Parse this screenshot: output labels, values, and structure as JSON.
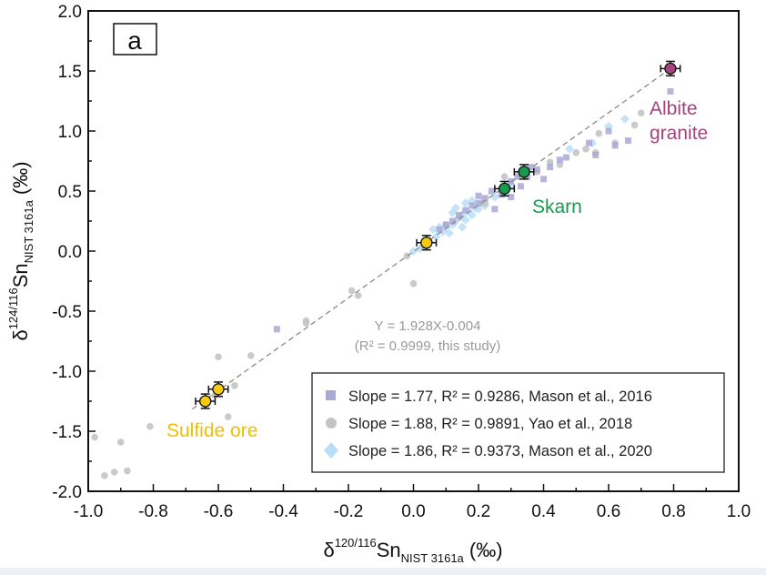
{
  "chart_data": {
    "type": "scatter",
    "panel_label": "a",
    "xlabel": {
      "base": "δ",
      "sup": "120/116",
      "main": "Sn",
      "sub": "NIST 3161a",
      "unit": " (‰)"
    },
    "ylabel": {
      "base": "δ",
      "sup": "124/116",
      "main": "Sn",
      "sub": "NIST 3161a",
      "unit": " (‰)"
    },
    "xlim": [
      -1.0,
      1.0
    ],
    "ylim": [
      -2.0,
      2.0
    ],
    "xticks": [
      "-1.0",
      "-0.8",
      "-0.6",
      "-0.4",
      "-0.2",
      "0.0",
      "0.2",
      "0.4",
      "0.6",
      "0.8",
      "1.0"
    ],
    "yticks": [
      "2.0",
      "1.5",
      "1.0",
      "0.5",
      "0.0",
      "-0.5",
      "-1.0",
      "-1.5",
      "-2.0"
    ],
    "fit": {
      "slope": 1.928,
      "intercept": -0.004,
      "x_range": [
        -0.68,
        0.78
      ],
      "eq_label": "Y = 1.928X-0.004",
      "r2_label": "(R² = 0.9999, this study)",
      "color": "#9a9a9a"
    },
    "this_study": [
      {
        "group": "Albite granite",
        "x": 0.79,
        "y": 1.52,
        "xerr": 0.03,
        "yerr": 0.06,
        "color": "#a4447e"
      },
      {
        "group": "Skarn",
        "x": 0.34,
        "y": 0.66,
        "xerr": 0.03,
        "yerr": 0.06,
        "color": "#17994f"
      },
      {
        "group": "Skarn",
        "x": 0.28,
        "y": 0.52,
        "xerr": 0.03,
        "yerr": 0.06,
        "color": "#17994f"
      },
      {
        "group": "Sulfide ore",
        "x": 0.04,
        "y": 0.07,
        "xerr": 0.03,
        "yerr": 0.06,
        "color": "#f5cb0f"
      },
      {
        "group": "Sulfide ore",
        "x": -0.6,
        "y": -1.15,
        "xerr": 0.03,
        "yerr": 0.06,
        "color": "#f5cb0f"
      },
      {
        "group": "Sulfide ore",
        "x": -0.64,
        "y": -1.25,
        "xerr": 0.03,
        "yerr": 0.06,
        "color": "#f5cb0f"
      }
    ],
    "annotations": [
      {
        "text": "Albite",
        "color": "#a4447e"
      },
      {
        "text": "granite",
        "color": "#a4447e"
      },
      {
        "text": "Skarn",
        "color": "#17994f"
      },
      {
        "text": "Sulfide ore",
        "color": "#f0c000"
      }
    ],
    "series": [
      {
        "name": "Slope = 1.77, R² = 0.9286, Mason et al., 2016",
        "marker": "square",
        "color": "#a9a9d6",
        "points": [
          [
            -0.42,
            -0.65
          ],
          [
            0.79,
            1.33
          ],
          [
            0.62,
            0.88
          ],
          [
            0.66,
            0.92
          ],
          [
            0.56,
            0.8
          ],
          [
            0.45,
            0.76
          ],
          [
            0.38,
            0.68
          ],
          [
            0.35,
            0.62
          ],
          [
            0.3,
            0.58
          ],
          [
            0.27,
            0.47
          ],
          [
            0.22,
            0.44
          ],
          [
            0.2,
            0.4
          ],
          [
            0.18,
            0.38
          ],
          [
            0.16,
            0.34
          ],
          [
            0.14,
            0.3
          ],
          [
            0.12,
            0.25
          ],
          [
            0.1,
            0.22
          ],
          [
            0.08,
            0.18
          ],
          [
            0.25,
            0.35
          ],
          [
            0.3,
            0.45
          ],
          [
            0.4,
            0.6
          ],
          [
            0.42,
            0.7
          ],
          [
            0.33,
            0.54
          ],
          [
            0.24,
            0.5
          ],
          [
            0.2,
            0.46
          ],
          [
            0.36,
            0.7
          ],
          [
            0.32,
            0.62
          ],
          [
            0.47,
            0.78
          ],
          [
            0.54,
            0.9
          ],
          [
            0.6,
            1.0
          ]
        ]
      },
      {
        "name": "Slope = 1.88, R² = 0.9891, Yao et al., 2018",
        "marker": "circle",
        "color": "#c4c4c4",
        "points": [
          [
            -0.98,
            -1.55
          ],
          [
            -0.95,
            -1.87
          ],
          [
            -0.92,
            -1.84
          ],
          [
            -0.9,
            -1.59
          ],
          [
            -0.88,
            -1.83
          ],
          [
            -0.81,
            -1.46
          ],
          [
            -0.6,
            -0.88
          ],
          [
            -0.5,
            -0.87
          ],
          [
            -0.57,
            -1.38
          ],
          [
            -0.55,
            -1.12
          ],
          [
            -0.61,
            -1.2
          ],
          [
            -0.33,
            -0.58
          ],
          [
            -0.33,
            -0.6
          ],
          [
            -0.19,
            -0.33
          ],
          [
            -0.17,
            -0.37
          ],
          [
            -0.02,
            -0.04
          ],
          [
            0.0,
            -0.27
          ],
          [
            0.03,
            0.04
          ],
          [
            0.28,
            0.62
          ],
          [
            0.45,
            0.72
          ],
          [
            0.5,
            0.82
          ],
          [
            0.56,
            0.82
          ],
          [
            0.62,
            0.9
          ],
          [
            0.68,
            1.05
          ],
          [
            0.7,
            1.15
          ],
          [
            0.38,
            0.66
          ],
          [
            0.42,
            0.74
          ],
          [
            0.22,
            0.4
          ],
          [
            0.14,
            0.28
          ],
          [
            0.1,
            0.22
          ],
          [
            0.53,
            0.85
          ],
          [
            0.57,
            0.98
          ]
        ]
      },
      {
        "name": "Slope = 1.86, R² = 0.9373, Mason et al., 2020",
        "marker": "diamond",
        "color": "#b8dff7",
        "points": [
          [
            0.0,
            0.0
          ],
          [
            0.05,
            0.08
          ],
          [
            0.07,
            0.12
          ],
          [
            0.09,
            0.16
          ],
          [
            0.1,
            0.2
          ],
          [
            0.12,
            0.22
          ],
          [
            0.13,
            0.25
          ],
          [
            0.14,
            0.28
          ],
          [
            0.15,
            0.3
          ],
          [
            0.16,
            0.26
          ],
          [
            0.17,
            0.33
          ],
          [
            0.18,
            0.3
          ],
          [
            0.19,
            0.36
          ],
          [
            0.2,
            0.35
          ],
          [
            0.21,
            0.4
          ],
          [
            0.12,
            0.32
          ],
          [
            0.08,
            0.2
          ],
          [
            0.06,
            0.18
          ],
          [
            0.11,
            0.15
          ],
          [
            0.15,
            0.2
          ],
          [
            0.22,
            0.38
          ],
          [
            0.25,
            0.45
          ],
          [
            0.27,
            0.5
          ],
          [
            0.3,
            0.55
          ],
          [
            0.18,
            0.42
          ],
          [
            0.55,
            0.9
          ],
          [
            0.6,
            1.04
          ],
          [
            0.65,
            1.1
          ],
          [
            0.48,
            0.85
          ],
          [
            0.13,
            0.36
          ],
          [
            0.16,
            0.4
          ],
          [
            0.02,
            0.02
          ]
        ]
      }
    ],
    "legend_position": "bottom-right",
    "grid": false
  }
}
